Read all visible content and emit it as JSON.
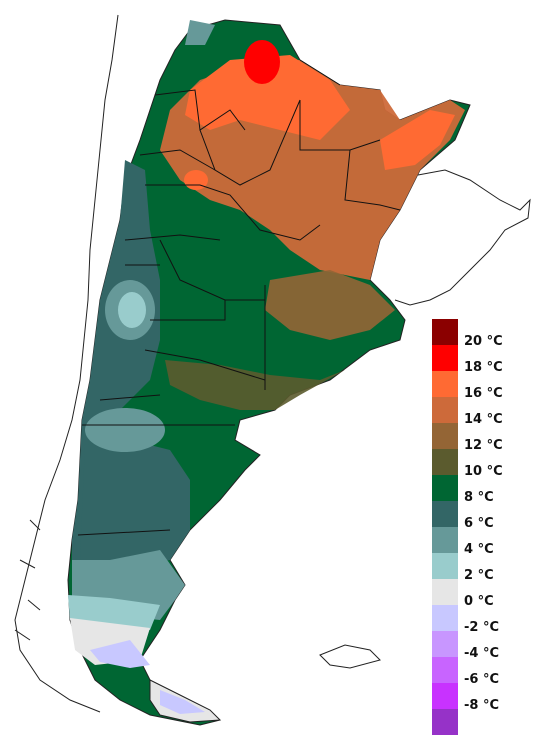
{
  "legend": {
    "colors": [
      "#8b0000",
      "#ff0000",
      "#ff6a33",
      "#cd6a3a",
      "#946535",
      "#5b5b2e",
      "#006633",
      "#336666",
      "#669999",
      "#99cccc",
      "#e6e6e6",
      "#c8c8ff",
      "#c896ff",
      "#c864ff",
      "#c832ff",
      "#9632c8"
    ],
    "labels": [
      "20 °C",
      "18 °C",
      "16 °C",
      "14 °C",
      "12 °C",
      "10 °C",
      "8 °C",
      "6 °C",
      "4 °C",
      "2 °C",
      "0 °C",
      "-2 °C",
      "-4 °C",
      "-6 °C",
      "-8 °C"
    ]
  }
}
